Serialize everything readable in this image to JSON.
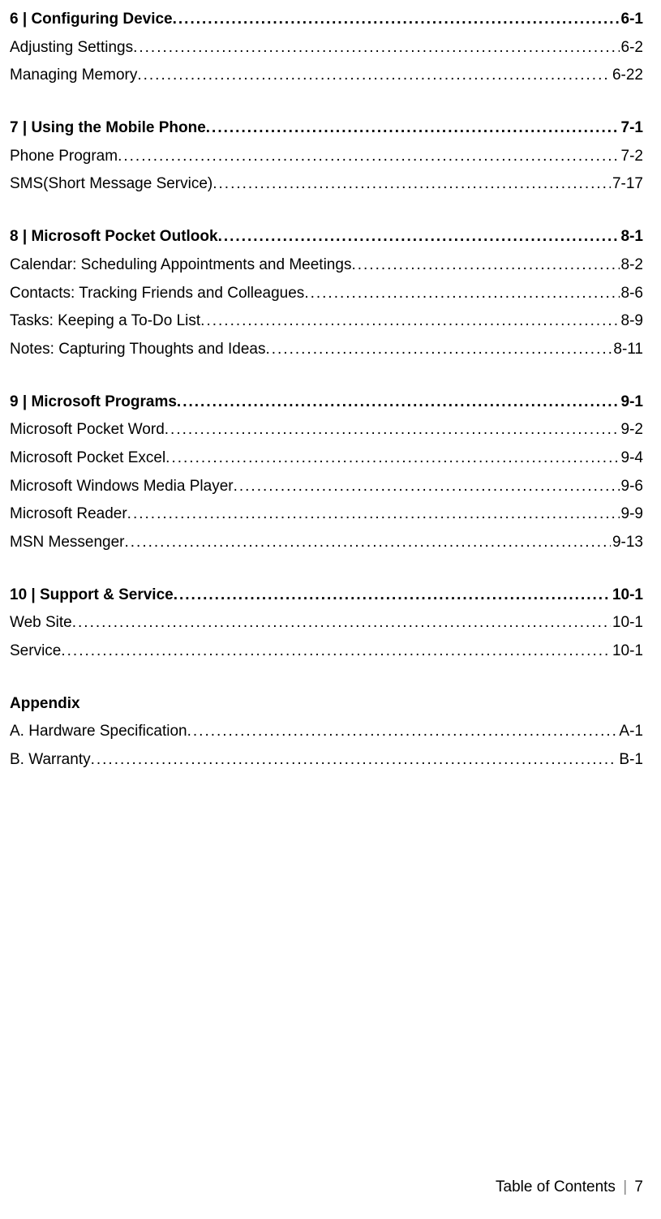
{
  "sections": [
    {
      "title": "6 | Configuring Device",
      "page": "6-1",
      "items": [
        {
          "title": "Adjusting Settings",
          "page": "6-2"
        },
        {
          "title": "Managing Memory",
          "page": "6-22"
        }
      ]
    },
    {
      "title": "7 | Using the Mobile Phone",
      "page": "7-1",
      "items": [
        {
          "title": "Phone Program",
          "page": "7-2"
        },
        {
          "title": "SMS(Short Message Service)",
          "page": "7-17"
        }
      ]
    },
    {
      "title": "8 | Microsoft Pocket Outlook",
      "page": "8-1",
      "items": [
        {
          "title": "Calendar: Scheduling Appointments and Meetings",
          "page": "8-2"
        },
        {
          "title": "Contacts: Tracking Friends and Colleagues",
          "page": "8-6"
        },
        {
          "title": "Tasks: Keeping a To-Do List",
          "page": "8-9"
        },
        {
          "title": "Notes: Capturing Thoughts and Ideas",
          "page": "8-11"
        }
      ]
    },
    {
      "title": "9 | Microsoft Programs  ",
      "page": "9-1",
      "items": [
        {
          "title": "Microsoft Pocket Word",
          "page": "9-2"
        },
        {
          "title": "Microsoft Pocket Excel",
          "page": "9-4"
        },
        {
          "title": "Microsoft Windows Media Player",
          "page": "9-6"
        },
        {
          "title": "Microsoft Reader",
          "page": "9-9"
        },
        {
          "title": "MSN Messenger",
          "page": "9-13"
        }
      ]
    },
    {
      "title": "10 | Support & Service  ",
      "page": "10-1",
      "items": [
        {
          "title": "Web Site",
          "page": "10-1"
        },
        {
          "title": "Service",
          "page": "10-1"
        }
      ]
    }
  ],
  "appendix": {
    "heading": "Appendix",
    "items": [
      {
        "title": "A. Hardware Specification",
        "page": "A-1"
      },
      {
        "title": "B. Warranty",
        "page": "B-1"
      }
    ]
  },
  "footer": {
    "label": "Table of Contents",
    "separator": "|",
    "pageNumber": "7"
  }
}
